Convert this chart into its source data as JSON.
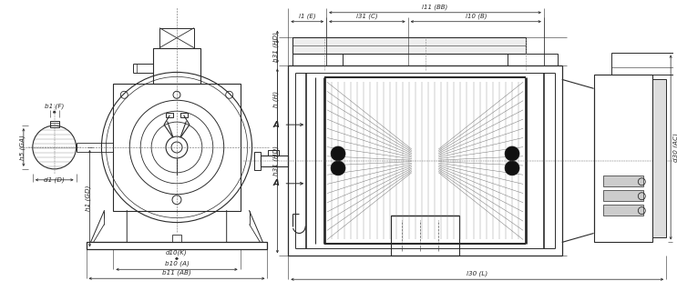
{
  "bg_color": "#ffffff",
  "lc": "#2a2a2a",
  "dc": "#2a2a2a",
  "fig_width": 7.43,
  "fig_height": 3.2,
  "dpi": 100,
  "ann": {
    "b1F": "b1 (F)",
    "h1GD": "h1 (GD)",
    "h5GA": "h5 (GA)",
    "d1D": "d1 (D)",
    "h31HD": "h31 (HD)",
    "hH": "h (H)",
    "d10K": "d10(K)",
    "b10A": "b10 (A)",
    "b11AB": "b11 (AB)",
    "l30L": "l30 (L)",
    "l1E": "l1 (E)",
    "l31C": "l31 (C)",
    "l10B": "l10 (B)",
    "l11BB": "l11 (BB)",
    "d30AC": "d30 (AC)",
    "A_label": "A"
  }
}
